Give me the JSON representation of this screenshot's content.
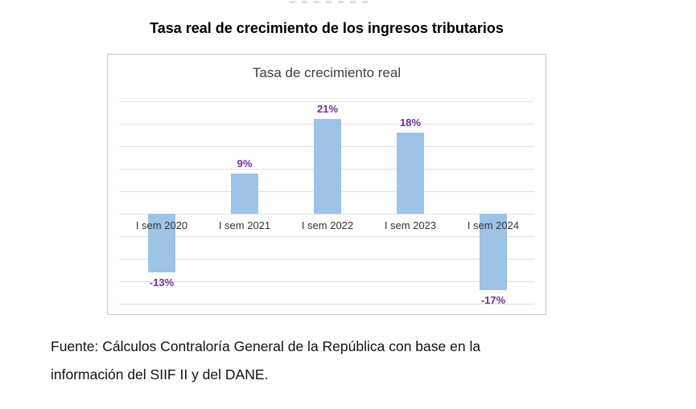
{
  "doc": {
    "heading": "Tasa real de crecimiento de los ingresos tributarios",
    "source": {
      "line1": "Fuente: Cálculos Contraloría General de la República con base en la",
      "line2": "información del SIIF II y del DANE."
    }
  },
  "chart_data": {
    "type": "bar",
    "title": "Tasa de crecimiento real",
    "categories": [
      "I sem 2020",
      "I sem 2021",
      "I sem 2022",
      "I sem 2023",
      "I sem 2024"
    ],
    "values": [
      -13,
      9,
      21,
      18,
      -17
    ],
    "data_labels": [
      "-13%",
      "9%",
      "21%",
      "18%",
      "-17%"
    ],
    "xlabel": "",
    "ylabel": "",
    "ylim": [
      -20,
      25
    ],
    "gridline_step_pct": 5,
    "grid": true,
    "legend_position": "none",
    "y_axis_tick_labels_visible": false,
    "colors": {
      "bar": "#9DC3E6",
      "data_label": "#7030A0",
      "category_label": "#333333",
      "chart_title": "#404040",
      "gridline": "#E0E0E0",
      "chart_border": "#C9C9C9"
    }
  }
}
